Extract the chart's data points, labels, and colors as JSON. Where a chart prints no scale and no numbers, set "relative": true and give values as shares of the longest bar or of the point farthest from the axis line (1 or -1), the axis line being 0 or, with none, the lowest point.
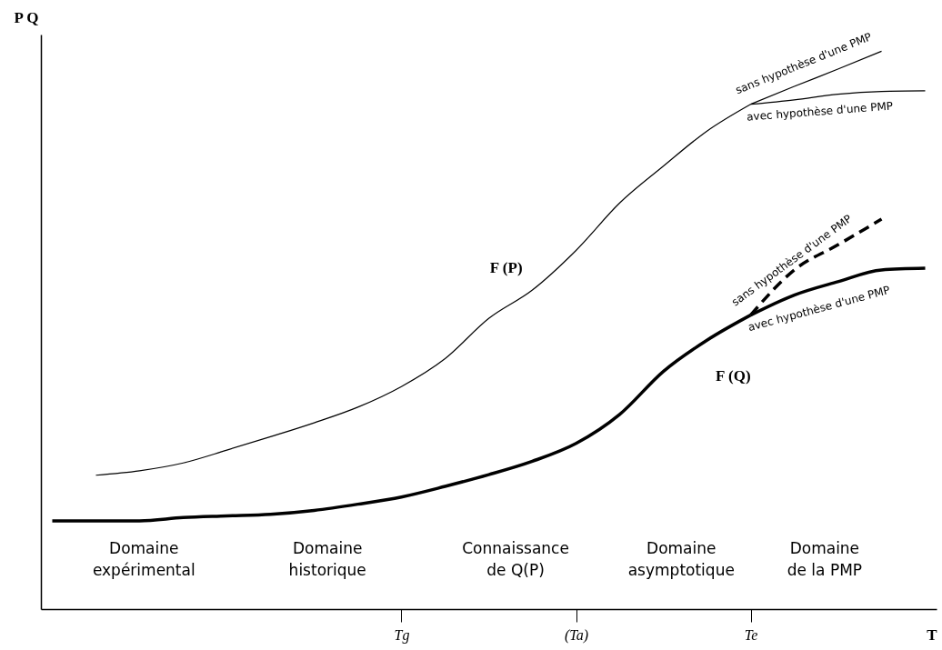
{
  "chart_data": {
    "type": "line",
    "relative": true,
    "xlabel": "T",
    "ylabel": "P Q",
    "legend": false,
    "grid": false,
    "categories": [
      null,
      null,
      null,
      null,
      null,
      null,
      null,
      null,
      "Tg",
      null,
      null,
      null,
      "(Ta)",
      null,
      null,
      null,
      "Te",
      null,
      null,
      null,
      null
    ],
    "series": [
      {
        "name": "F (P)",
        "color": "#000000",
        "values": [
          null,
          0.24,
          0.248,
          0.262,
          0.285,
          0.309,
          0.334,
          0.362,
          0.399,
          0.449,
          0.521,
          0.572,
          0.643,
          0.728,
          0.794,
          0.857,
          0.905,
          null,
          null,
          null,
          null
        ]
      },
      {
        "name": "sans hypothèse d'une PMP",
        "color": "#000000",
        "values": [
          null,
          null,
          null,
          null,
          null,
          null,
          null,
          null,
          null,
          null,
          null,
          null,
          null,
          null,
          null,
          null,
          0.905,
          0.937,
          0.968,
          1.0,
          null
        ]
      },
      {
        "name": "avec hypothèse d'une PMP",
        "color": "#000000",
        "values": [
          null,
          null,
          null,
          null,
          null,
          null,
          null,
          null,
          null,
          null,
          null,
          null,
          null,
          null,
          null,
          null,
          0.905,
          0.913,
          0.923,
          0.928,
          0.929
        ]
      },
      {
        "name": "F (Q)",
        "color": "#000000",
        "values": [
          0.158,
          0.158,
          0.158,
          0.164,
          0.167,
          0.17,
          0.177,
          0.188,
          0.201,
          0.22,
          0.241,
          0.265,
          0.297,
          0.349,
          0.426,
          0.482,
          0.527,
          null,
          null,
          null,
          null
        ]
      },
      {
        "name": "sans hypothèse d'une PMP",
        "color": "#000000",
        "line_style": "dashed",
        "values": [
          null,
          null,
          null,
          null,
          null,
          null,
          null,
          null,
          null,
          null,
          null,
          null,
          null,
          null,
          null,
          null,
          0.527,
          0.608,
          0.653,
          0.699,
          null
        ]
      },
      {
        "name": "avec hypothèse d'une PMP",
        "color": "#000000",
        "values": [
          null,
          null,
          null,
          null,
          null,
          null,
          null,
          null,
          null,
          null,
          null,
          null,
          null,
          null,
          null,
          null,
          0.527,
          0.563,
          0.587,
          0.608,
          0.611
        ]
      }
    ],
    "annotations": [
      "Domaine\nexpérimental",
      "Domaine\nhistorique",
      "Connaissance\nde Q(P)",
      "Domaine\nasymptotique",
      "Domaine\nde la PMP"
    ]
  }
}
